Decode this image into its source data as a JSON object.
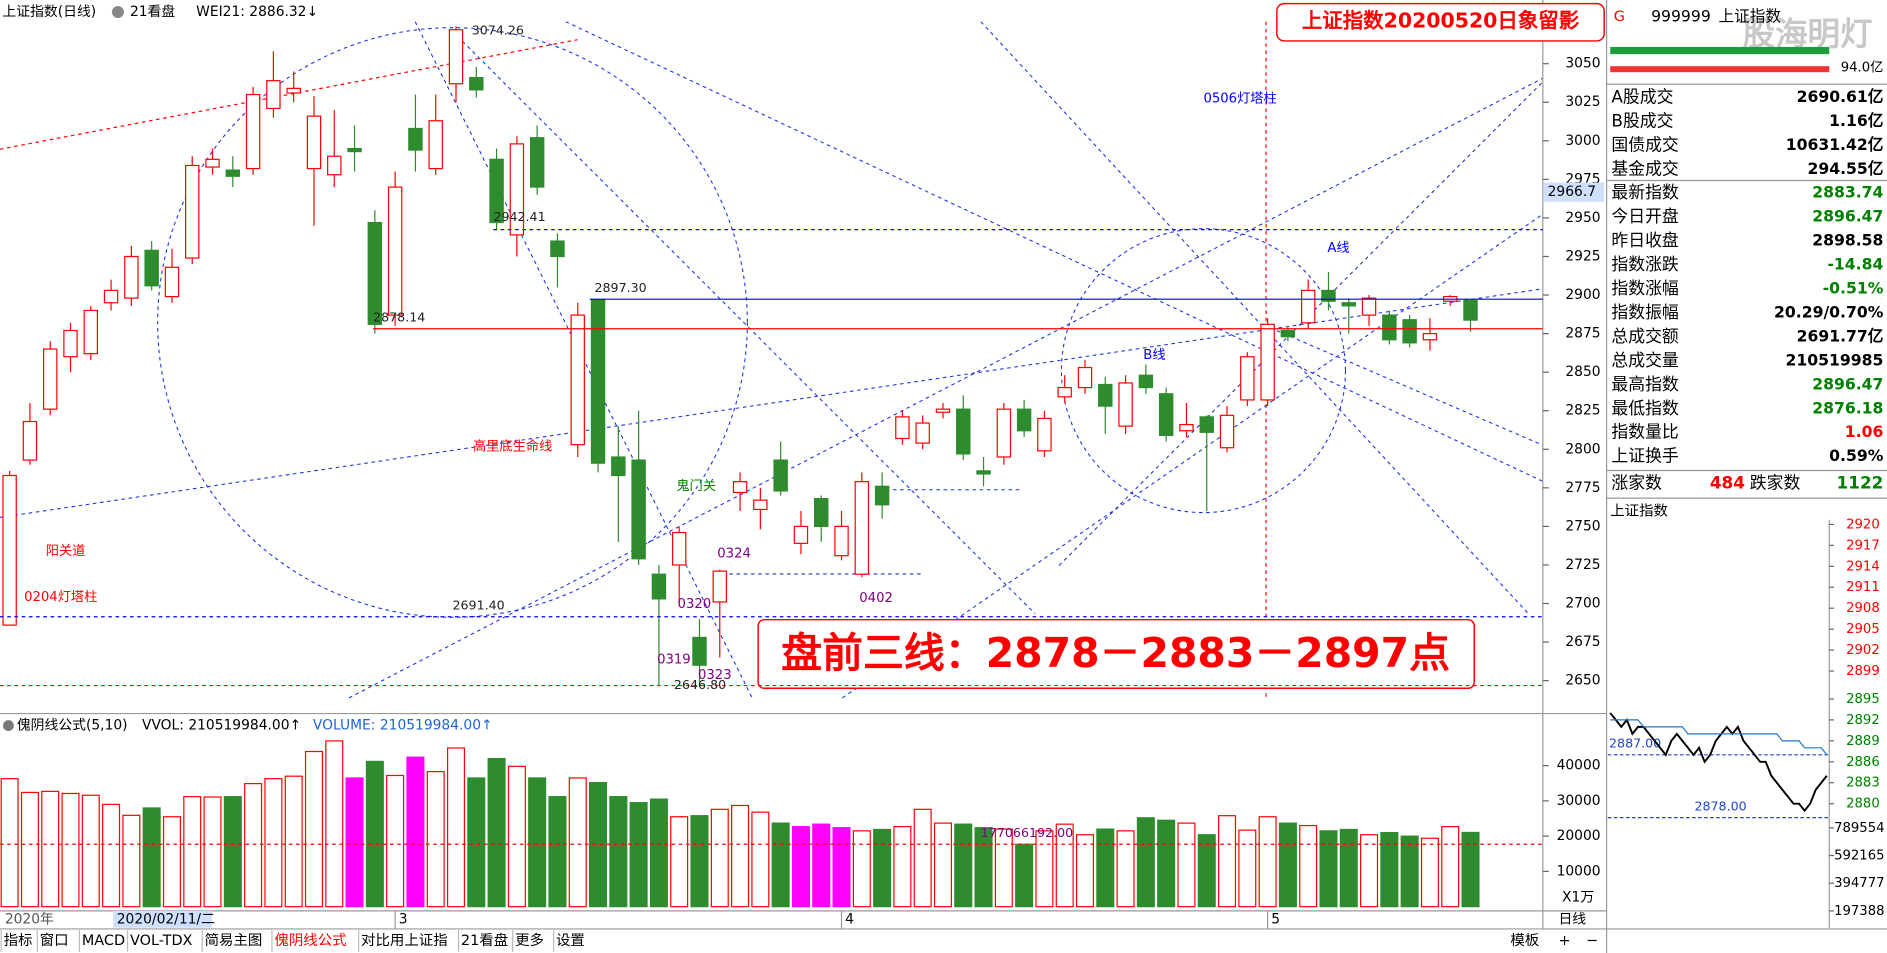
{
  "header": {
    "symbol_title": "上证指数(日线)",
    "tab": "21看盘",
    "indicator": "WEI21: 2886.32↓"
  },
  "chart_data": [
    {
      "type": "candlestick",
      "title": "上证指数20200520日象留影",
      "categories": [
        null,
        null,
        null,
        null,
        null,
        null,
        null,
        null,
        null,
        null,
        null,
        null,
        null,
        null,
        null,
        null,
        null,
        null,
        null,
        "3",
        null,
        null,
        null,
        null,
        null,
        null,
        null,
        null,
        null,
        null,
        null,
        null,
        null,
        null,
        null,
        null,
        null,
        null,
        null,
        null,
        null,
        "4",
        null,
        null,
        null,
        null,
        null,
        null,
        null,
        null,
        null,
        null,
        null,
        null,
        null,
        null,
        null,
        null,
        null,
        null,
        null,
        null,
        "5",
        null,
        null,
        null,
        null,
        null,
        null,
        null,
        null,
        null,
        null
      ],
      "open": [
        2686,
        2793,
        2826,
        2860,
        2862,
        2895,
        2898,
        2929,
        2899,
        2924,
        2983,
        2981,
        2982,
        3021,
        3031,
        2982,
        2978,
        2995,
        2947,
        2887,
        3008,
        2982,
        3037,
        3041,
        2988,
        2939,
        3002,
        2935,
        2803,
        2897,
        2795,
        2793,
        2719,
        2725,
        2678,
        2701,
        2772,
        2761,
        2793,
        2739,
        2768,
        2731,
        2719,
        2776,
        2807,
        2804,
        2824,
        2826,
        2786,
        2795,
        2826,
        2799,
        2834,
        2840,
        2842,
        2815,
        2848,
        2836,
        2812,
        2821,
        2801,
        2832,
        2832,
        2877,
        2882,
        2903,
        2895,
        2887,
        2887,
        2884,
        2871,
        2896,
        2896.47
      ],
      "high": [
        2786,
        2830,
        2870,
        2882,
        2893,
        2910,
        2932,
        2935,
        2930,
        2990,
        2995,
        2990,
        3035,
        3058,
        3045,
        3029,
        3020,
        3010,
        2955,
        2980,
        3030,
        3030,
        3074.26,
        3048,
        2995,
        3003,
        3010,
        2940,
        2895,
        2897.3,
        2815,
        2825,
        2725,
        2750,
        2690,
        2722,
        2785,
        2775,
        2805,
        2760,
        2770,
        2760,
        2785,
        2785,
        2825,
        2822,
        2830,
        2835,
        2795,
        2830,
        2832,
        2825,
        2848,
        2858,
        2847,
        2848,
        2855,
        2840,
        2830,
        2822,
        2828,
        2863,
        2885,
        2880,
        2910,
        2915,
        2898,
        2900,
        2890,
        2887,
        2885,
        2900,
        2896.47
      ],
      "low": [
        2686,
        2790,
        2822,
        2850,
        2858,
        2890,
        2893,
        2903,
        2895,
        2920,
        2978,
        2970,
        2978,
        3015,
        3025,
        2945,
        2970,
        2980,
        2875,
        2880,
        2980,
        2978,
        3025,
        3028,
        2942.41,
        2925,
        2965,
        2905,
        2795,
        2785,
        2740,
        2725,
        2646.8,
        2700,
        2648,
        2665,
        2760,
        2748,
        2770,
        2732,
        2740,
        2728,
        2717,
        2755,
        2803,
        2800,
        2820,
        2793,
        2776,
        2790,
        2808,
        2795,
        2830,
        2836,
        2810,
        2810,
        2836,
        2805,
        2808,
        2760,
        2798,
        2828,
        2828,
        2870,
        2878,
        2890,
        2875,
        2880,
        2868,
        2866,
        2864,
        2893,
        2876.18
      ],
      "close": [
        2783,
        2818,
        2865,
        2877,
        2890,
        2903,
        2925,
        2906,
        2918,
        2984,
        2988,
        2977,
        3030,
        3039,
        3034,
        3016,
        2990,
        2993,
        2881,
        2970,
        2994,
        3013,
        3072,
        3033,
        2947,
        2998,
        2970,
        2925,
        2887,
        2791,
        2783,
        2729,
        2703,
        2746,
        2660,
        2721,
        2779,
        2767,
        2773,
        2750,
        2750,
        2750,
        2779,
        2764,
        2821,
        2817,
        2826,
        2797,
        2784,
        2826,
        2812,
        2820,
        2840,
        2853,
        2828,
        2843,
        2840,
        2809,
        2816,
        2811,
        2822,
        2860,
        2881,
        2873,
        2903,
        2896,
        2893,
        2898,
        2871,
        2869,
        2875,
        2899,
        2883.74
      ],
      "up_color": "#ff0000",
      "down_color": "#2e8b2e",
      "ylim": [
        2631,
        3087
      ],
      "yticks": [
        2650,
        2675,
        2700,
        2725,
        2750,
        2775,
        2800,
        2825,
        2850,
        2875,
        2900,
        2925,
        2950,
        2975,
        3000,
        3025,
        3050
      ],
      "x_start_label": "2020年",
      "cursor_date_label": "2020/02/11/二",
      "current_price_label": 2966.7,
      "price_marks": [
        {
          "value": 3074.26,
          "label": "3074.26"
        },
        {
          "value": 2942.41,
          "label": "2942.41",
          "line_color": "#0000ff",
          "line_style": "dashed"
        },
        {
          "value": 2897.3,
          "label": "2897.30",
          "line_color": "#0000ff",
          "line_style": "solid"
        },
        {
          "value": 2878.14,
          "label": "2878.14",
          "line_color": "#ff0000",
          "line_style": "solid"
        },
        {
          "value": 2691.4,
          "label": "2691.40",
          "line_color": "#0000ff",
          "line_style": "dashed"
        },
        {
          "value": 2646.8,
          "label": "2646.80",
          "line_color": "#ff0000",
          "line_style": "dashed"
        }
      ],
      "annotations": [
        {
          "text": "阳关道",
          "color": "#ff0000"
        },
        {
          "text": "0204灯塔柱",
          "color": "#ff0000"
        },
        {
          "text": "高里底生命线",
          "color": "#ff0000"
        },
        {
          "text": "鬼门关",
          "color": "#008000"
        },
        {
          "text": "0506灯塔柱",
          "color": "#0000ff"
        },
        {
          "text": "A线",
          "color": "#0000ff"
        },
        {
          "text": "B线",
          "color": "#0000ff"
        },
        {
          "text": "0319",
          "color": "#800080"
        },
        {
          "text": "0320",
          "color": "#800080"
        },
        {
          "text": "0323",
          "color": "#800080"
        },
        {
          "text": "0324",
          "color": "#800080"
        },
        {
          "text": "0402",
          "color": "#800080"
        }
      ],
      "headline": "盘前三线：2878－2883－2897点"
    },
    {
      "type": "bar",
      "title": "傀阴线公式(5,10)",
      "legend": [
        "VVOL: 210519984.00↑",
        "VOLUME: 210519984.00↑"
      ],
      "values": [
        36300,
        32400,
        32700,
        32100,
        31600,
        29000,
        25900,
        28000,
        25500,
        31200,
        31100,
        31200,
        34900,
        36300,
        37000,
        44000,
        47000,
        36500,
        41200,
        37200,
        42400,
        38300,
        45000,
        36500,
        42000,
        39800,
        36500,
        31200,
        36500,
        35200,
        31200,
        29500,
        30500,
        25500,
        25800,
        27600,
        28700,
        26800,
        23700,
        22700,
        23400,
        22400,
        21500,
        21900,
        22700,
        27600,
        23700,
        23400,
        22400,
        22000,
        17700,
        21500,
        23400,
        20400,
        22000,
        21500,
        25200,
        24500,
        23700,
        20400,
        25800,
        21700,
        25500,
        23700,
        23000,
        21500,
        21900,
        20400,
        21000,
        20000,
        19400,
        22700,
        21052
      ],
      "highlight_bars": [
        17,
        20,
        39,
        40,
        41
      ],
      "highlight_color": "#ff00ff",
      "ylim": [
        0,
        53400
      ],
      "yticks": [
        10000,
        20000,
        30000,
        40000
      ],
      "unit_label": "X1万",
      "reference_line": {
        "value": 17706.6192,
        "label": "177066192.00"
      }
    },
    {
      "type": "line",
      "title": "上证指数",
      "series": [
        {
          "color": "#000000",
          "values": [
            2893,
            2892,
            2891,
            2892,
            2890,
            2891,
            2891,
            2890,
            2889,
            2888,
            2887,
            2889,
            2890,
            2889,
            2888,
            2887,
            2888,
            2886,
            2887,
            2889,
            2890,
            2891,
            2890,
            2891,
            2889,
            2888,
            2887,
            2886,
            2886,
            2884,
            2883,
            2882,
            2881,
            2880,
            2880,
            2879,
            2880,
            2882,
            2883,
            2884
          ]
        },
        {
          "color": "#1e78c8",
          "values": [
            2892,
            2892,
            2892,
            2892,
            2892,
            2892,
            2891,
            2891,
            2891,
            2891,
            2891,
            2891,
            2891,
            2891,
            2890,
            2890,
            2890,
            2890,
            2890,
            2890,
            2890,
            2890,
            2890,
            2890,
            2890,
            2890,
            2890,
            2890,
            2890,
            2890,
            2890,
            2889,
            2889,
            2889,
            2889,
            2888,
            2888,
            2888,
            2888,
            2887
          ]
        }
      ],
      "ylim": [
        2877.4,
        2921
      ],
      "yticks": [
        2920,
        2917,
        2914,
        2911,
        2908,
        2905,
        2902,
        2899,
        2895,
        2892,
        2889,
        2886,
        2883,
        2880
      ],
      "y2lim": [
        0,
        832470
      ],
      "y2ticks": [
        197388,
        394777,
        592165,
        789554
      ],
      "ref_lines": [
        {
          "value": 2887,
          "label": "2887.00"
        },
        {
          "value": 2878,
          "label": "2878.00"
        }
      ]
    }
  ],
  "quote_panel": {
    "marker": "G",
    "code": "999999",
    "name": "上证指数",
    "amount": "94.0亿",
    "rows": [
      {
        "label": "A股成交",
        "value": "2690.61亿",
        "color": "#000000"
      },
      {
        "label": "B股成交",
        "value": "1.16亿",
        "color": "#000000"
      },
      {
        "label": "国债成交",
        "value": "10631.42亿",
        "color": "#000000"
      },
      {
        "label": "基金成交",
        "value": "294.55亿",
        "color": "#000000"
      },
      {
        "label": "最新指数",
        "value": "2883.74",
        "color": "#008000"
      },
      {
        "label": "今日开盘",
        "value": "2896.47",
        "color": "#008000"
      },
      {
        "label": "昨日收盘",
        "value": "2898.58",
        "color": "#000000"
      },
      {
        "label": "指数涨跌",
        "value": "-14.84",
        "color": "#008000"
      },
      {
        "label": "指数涨幅",
        "value": "-0.51%",
        "color": "#008000"
      },
      {
        "label": "指数振幅",
        "value": "20.29/0.70%",
        "color": "#000000"
      },
      {
        "label": "总成交额",
        "value": "2691.77亿",
        "color": "#000000"
      },
      {
        "label": "总成交量",
        "value": "210519985",
        "color": "#000000"
      },
      {
        "label": "最高指数",
        "value": "2896.47",
        "color": "#008000"
      },
      {
        "label": "最低指数",
        "value": "2876.18",
        "color": "#008000"
      },
      {
        "label": "指数量比",
        "value": "1.06",
        "color": "#ff0000"
      },
      {
        "label": "上证换手",
        "value": "0.59%",
        "color": "#000000"
      }
    ],
    "breadth": {
      "up_label": "涨家数",
      "up": 484,
      "down_label": "跌家数",
      "down": 1122
    }
  },
  "toolbar": {
    "tabs": [
      "指标",
      "窗口",
      "MACD",
      "VOL-TDX",
      "简易主图",
      "傀阴线公式",
      "对比用上证指",
      "21看盘",
      "更多",
      "设置"
    ],
    "active_tab": 5,
    "right": [
      "模板",
      "+",
      "−"
    ],
    "period": "日线"
  },
  "watermark": "股海明灯"
}
